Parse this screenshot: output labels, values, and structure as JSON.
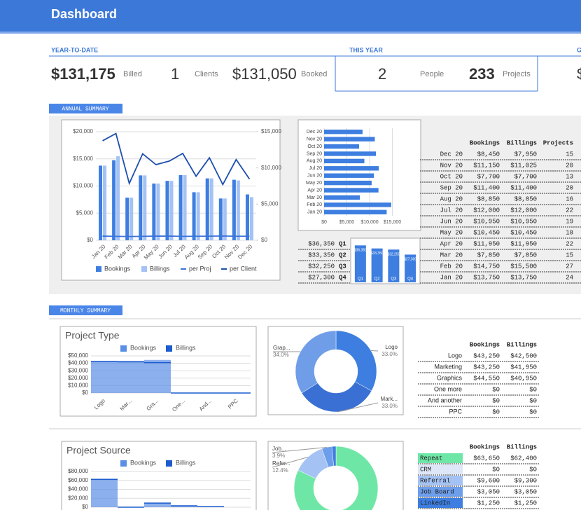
{
  "header": {
    "title": "Dashboard"
  },
  "kpis": [
    {
      "label": "YEAR-TO-DATE",
      "items": [
        {
          "value": "$131,175",
          "label": "Billed"
        },
        {
          "value": "1",
          "label": "Clients"
        },
        {
          "value": "$131,050",
          "label": "Booked"
        }
      ]
    },
    {
      "label": "THIS YEAR",
      "items": [
        {
          "value": "2",
          "label": "People"
        },
        {
          "value": "233",
          "label": "Projects"
        }
      ]
    },
    {
      "label": "G",
      "items": [
        {
          "value": "$"
        }
      ]
    }
  ],
  "annual": {
    "label": "ANNUAL SUMMARY",
    "monthly_chart": {
      "type": "bar",
      "categories": [
        "Jan 20",
        "Feb 20",
        "Mar 20",
        "Apr 20",
        "May 20",
        "Jun 20",
        "Jul 20",
        "Aug 20",
        "Sep 20",
        "Oct 20",
        "Nov 20",
        "Dec 20"
      ],
      "ylim": [
        0,
        20000
      ],
      "yticks": [
        {
          "value": 0,
          "label": "$0"
        },
        {
          "value": 5000,
          "label": "$5,000"
        },
        {
          "value": 10000,
          "label": "$10,000"
        },
        {
          "value": 15000,
          "label": "$15,000"
        },
        {
          "value": 20000,
          "label": "$20,000"
        }
      ],
      "y2lim": [
        0,
        15000
      ],
      "y2ticks": [
        {
          "value": 0,
          "label": "$0"
        },
        {
          "value": 5000,
          "label": "$5,000"
        },
        {
          "value": 10000,
          "label": "$10,000"
        },
        {
          "value": 15000,
          "label": "$15,000"
        }
      ],
      "grid": true,
      "series": [
        {
          "name": "Bookings",
          "color": "#3d7ee0",
          "values": [
            13750,
            14750,
            7850,
            11950,
            10450,
            10950,
            12000,
            8850,
            11400,
            7700,
            11150,
            8450
          ]
        },
        {
          "name": "Billings",
          "color": "#a4c2f4",
          "values": [
            13750,
            15500,
            7850,
            11950,
            10450,
            10950,
            12000,
            8850,
            11400,
            7700,
            11025,
            7950
          ]
        },
        {
          "name": "per Proj",
          "type": "line",
          "axis": "y2",
          "color": "#3b73d9",
          "values": [
            573,
            546,
            523,
            543,
            581,
            576,
            545,
            553,
            570,
            592,
            558,
            563
          ]
        },
        {
          "name": "per Client",
          "type": "line",
          "axis": "y2",
          "color": "#1d4fae",
          "values": [
            13750,
            14750,
            7850,
            11950,
            10450,
            10950,
            12000,
            8850,
            11400,
            7700,
            11150,
            8450
          ]
        }
      ]
    },
    "bar_chart": {
      "type": "bar",
      "orientation": "horizontal",
      "color": "#3d7ee0",
      "categories": [
        "Dec 20",
        "Nov 20",
        "Oct 20",
        "Sep 20",
        "Aug 20",
        "Jul 20",
        "Jun 20",
        "May 20",
        "Apr 20",
        "Mar 20",
        "Feb 20",
        "Jan 20"
      ],
      "values": [
        8450,
        11150,
        7700,
        11400,
        8850,
        12000,
        10950,
        10450,
        11950,
        7850,
        14750,
        13750
      ],
      "xlim": [
        0,
        18000
      ],
      "xticks": [
        {
          "value": 0,
          "label": "$0"
        },
        {
          "value": 5000,
          "label": "$5,000"
        },
        {
          "value": 10000,
          "label": "$10,000"
        },
        {
          "value": 15000,
          "label": "$15,000"
        }
      ],
      "grid": true
    },
    "quarters": {
      "type": "bar",
      "color": "#3d7ee0",
      "categories": [
        "Q1",
        "Q2",
        "Q3",
        "Q4"
      ],
      "values": [
        36350,
        33350,
        32250,
        27300
      ],
      "value_labels": [
        "$36,350",
        "$33,350",
        "$32,250",
        "$27,300"
      ],
      "ylim": [
        0,
        40000
      ]
    },
    "table": {
      "header": [
        "Bookings",
        "Billings",
        "Projects"
      ],
      "rows": [
        [
          "Dec 20",
          "$8,450",
          "$7,950",
          "15"
        ],
        [
          "Nov 20",
          "$11,150",
          "$11,025",
          "20"
        ],
        [
          "Oct 20",
          "$7,700",
          "$7,700",
          "13"
        ],
        [
          "Sep 20",
          "$11,400",
          "$11,400",
          "20"
        ],
        [
          "Aug 20",
          "$8,850",
          "$8,850",
          "16"
        ],
        [
          "Jul 20",
          "$12,000",
          "$12,000",
          "22"
        ],
        [
          "Jun 20",
          "$10,950",
          "$10,950",
          "19"
        ],
        [
          "May 20",
          "$10,450",
          "$10,450",
          "18"
        ],
        [
          "Apr 20",
          "$11,950",
          "$11,950",
          "22"
        ],
        [
          "Mar 20",
          "$7,850",
          "$7,850",
          "15"
        ],
        [
          "Feb 20",
          "$14,750",
          "$15,500",
          "27"
        ],
        [
          "Jan 20",
          "$13,750",
          "$13,750",
          "24"
        ]
      ]
    }
  },
  "monthly": {
    "label": "MONTHLY SUMMARY",
    "type_chart": {
      "type": "area",
      "title": "Project Type",
      "categories": [
        "Logo",
        "Mar...",
        "Gra...",
        "One...",
        "And...",
        "PPC"
      ],
      "ylim": [
        0,
        50000
      ],
      "yticks": [
        {
          "value": 0,
          "label": "$0"
        },
        {
          "value": 10000,
          "label": "$10,000"
        },
        {
          "value": 20000,
          "label": "$20,000"
        },
        {
          "value": 30000,
          "label": "$30,000"
        },
        {
          "value": 40000,
          "label": "$40,000"
        },
        {
          "value": 50000,
          "label": "$50,000"
        }
      ],
      "grid": true,
      "series": [
        {
          "name": "Bookings",
          "color": "#5b8fe6",
          "values": [
            43250,
            43250,
            44550,
            0,
            0,
            0
          ]
        },
        {
          "name": "Billings",
          "color": "#1c5ccf",
          "values": [
            42500,
            41950,
            40950,
            0,
            0,
            0
          ]
        }
      ]
    },
    "type_pie": {
      "type": "pie",
      "labels": [
        "Logo",
        "Mark...",
        "Grap..."
      ],
      "values": [
        33.0,
        33.0,
        34.0
      ],
      "value_labels": [
        "33.0%",
        "33.0%",
        "34.0%"
      ],
      "colors": [
        "#3d7ee0",
        "#3a70d4",
        "#6f9de8"
      ]
    },
    "type_table": {
      "header": [
        "Bookings",
        "Billings"
      ],
      "rows": [
        [
          "Logo",
          "$43,250",
          "$42,500"
        ],
        [
          "Marketing",
          "$43,250",
          "$41,950"
        ],
        [
          "Graphics",
          "$44,550",
          "$40,950"
        ],
        [
          "One more",
          "$0",
          "$0"
        ],
        [
          "And another",
          "$0",
          "$0"
        ],
        [
          "PPC",
          "$0",
          "$0"
        ]
      ]
    },
    "source_chart": {
      "type": "area",
      "title": "Project Source",
      "ylim": [
        0,
        80000
      ],
      "yticks": [
        {
          "value": 0,
          "label": "$0"
        },
        {
          "value": 20000,
          "label": "$20,000"
        },
        {
          "value": 40000,
          "label": "$40,000"
        },
        {
          "value": 60000,
          "label": "$60,000"
        },
        {
          "value": 80000,
          "label": "$80,000"
        }
      ],
      "grid": true,
      "series": [
        {
          "name": "Bookings",
          "color": "#5b8fe6",
          "values": [
            63650,
            0,
            9600,
            3050,
            1250
          ]
        },
        {
          "name": "Billings",
          "color": "#1c5ccf",
          "values": [
            62400,
            0,
            9300,
            3050,
            1250
          ]
        }
      ]
    },
    "source_pie": {
      "type": "pie",
      "labels": [
        null,
        "Refer...",
        "Job...",
        null
      ],
      "values": [
        82.1,
        12.4,
        3.9,
        1.6
      ],
      "value_labels": [
        null,
        "12.4%",
        "3.9%",
        null
      ],
      "colors": [
        "#6ee7a6",
        "#a4c2f4",
        "#6d9eeb",
        "#3d7ee0"
      ]
    },
    "source_table": {
      "header": [
        "Bookings",
        "Billings"
      ],
      "rows": [
        [
          "Repeat",
          "$63,650",
          "$62,400"
        ],
        [
          "CRM",
          "$0",
          "$0"
        ],
        [
          "Referral",
          "$9,600",
          "$9,300"
        ],
        [
          "Job Board",
          "$3,050",
          "$3,050"
        ],
        [
          "LinkedIn",
          "$1,250",
          "$1,250"
        ]
      ],
      "colors": [
        "#6ee7a6",
        "#dde7f8",
        "#a4c2f4",
        "#6d9eeb",
        "#3d7ee0"
      ]
    }
  }
}
